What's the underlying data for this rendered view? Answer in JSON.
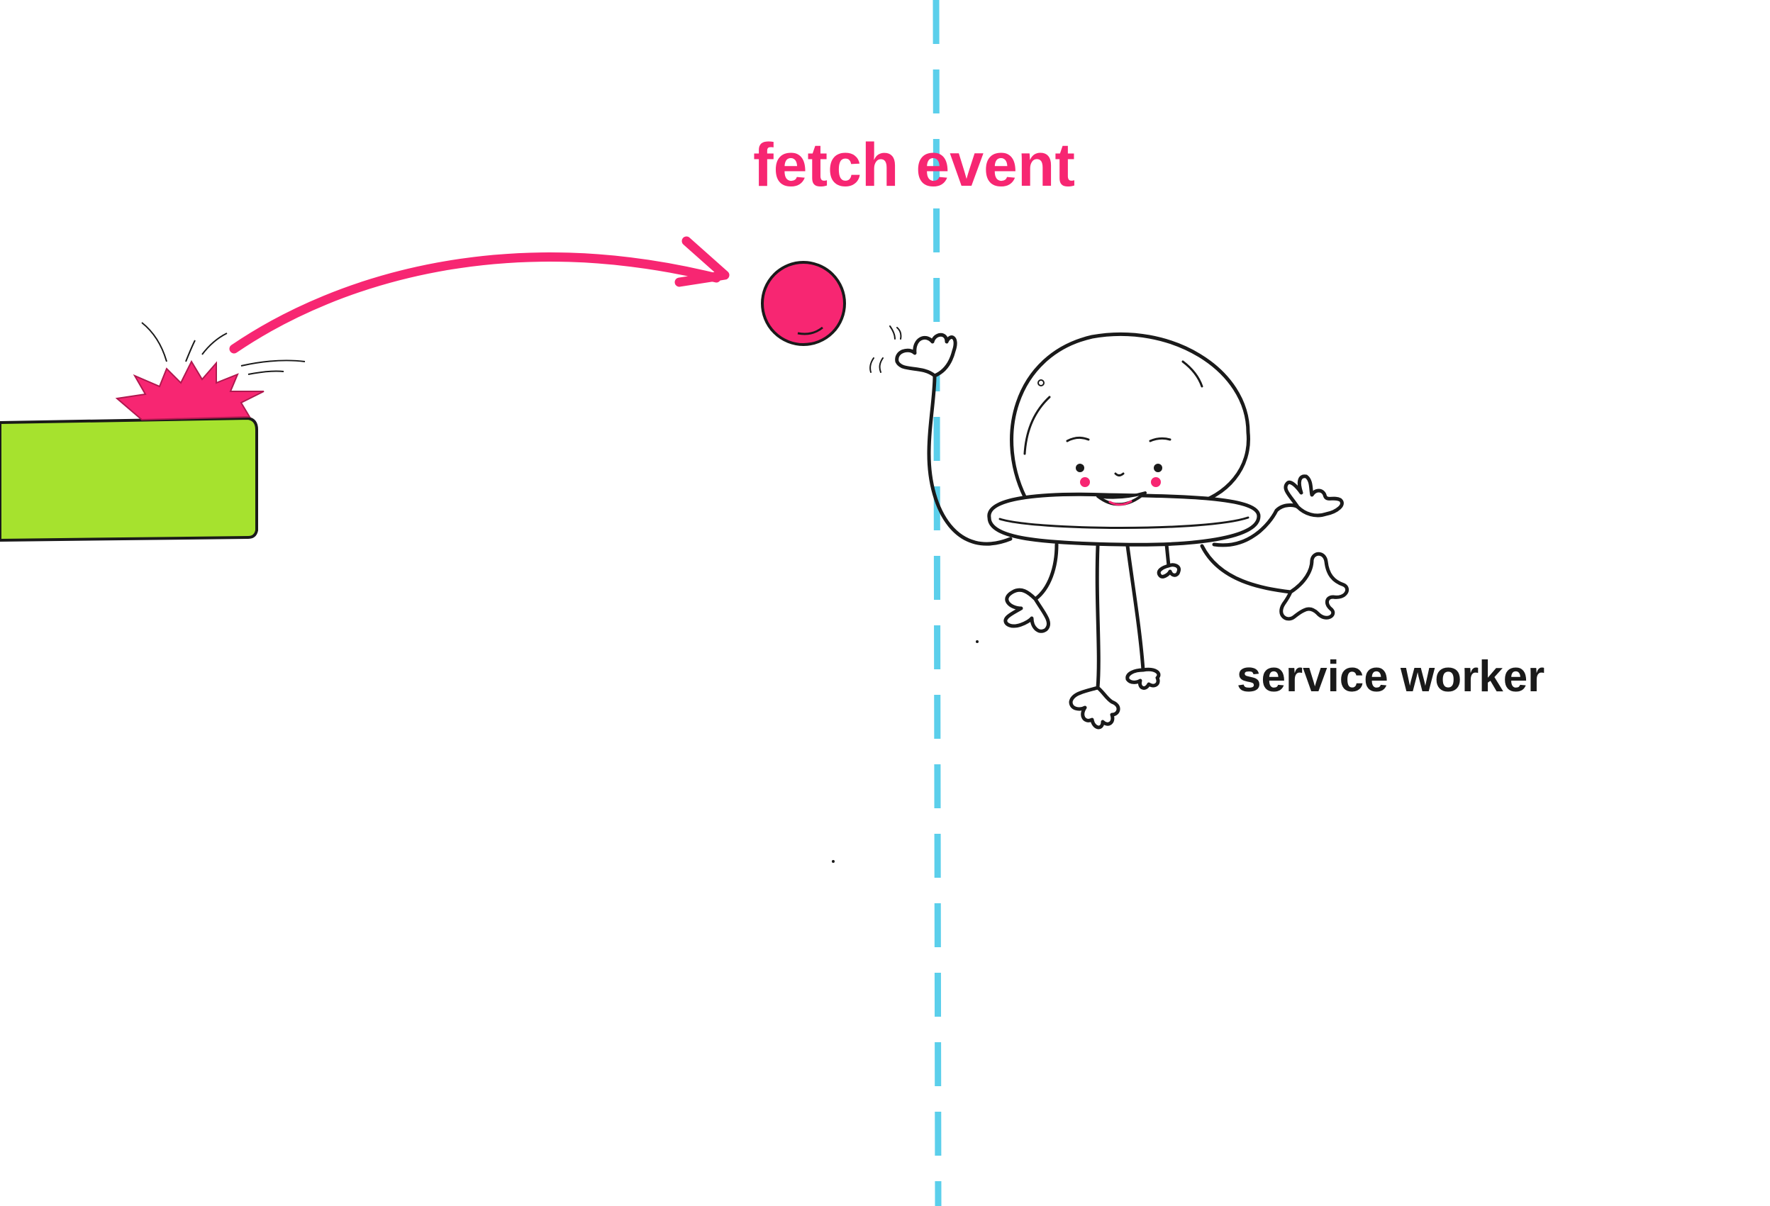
{
  "labels": {
    "fetch_event": "fetch event",
    "service_worker": "service worker"
  },
  "colors": {
    "accent_pink": "#f72672",
    "platform_green": "#a6e22e",
    "boundary_blue": "#5bcfeb",
    "ink": "#1a1a1a",
    "background": "#ffffff"
  },
  "icons": {
    "platform": "green-block",
    "splash": "pink-splash-icon",
    "arrow": "curved-arrow-icon",
    "ball": "pink-ball-icon",
    "character": "service-worker-character"
  }
}
